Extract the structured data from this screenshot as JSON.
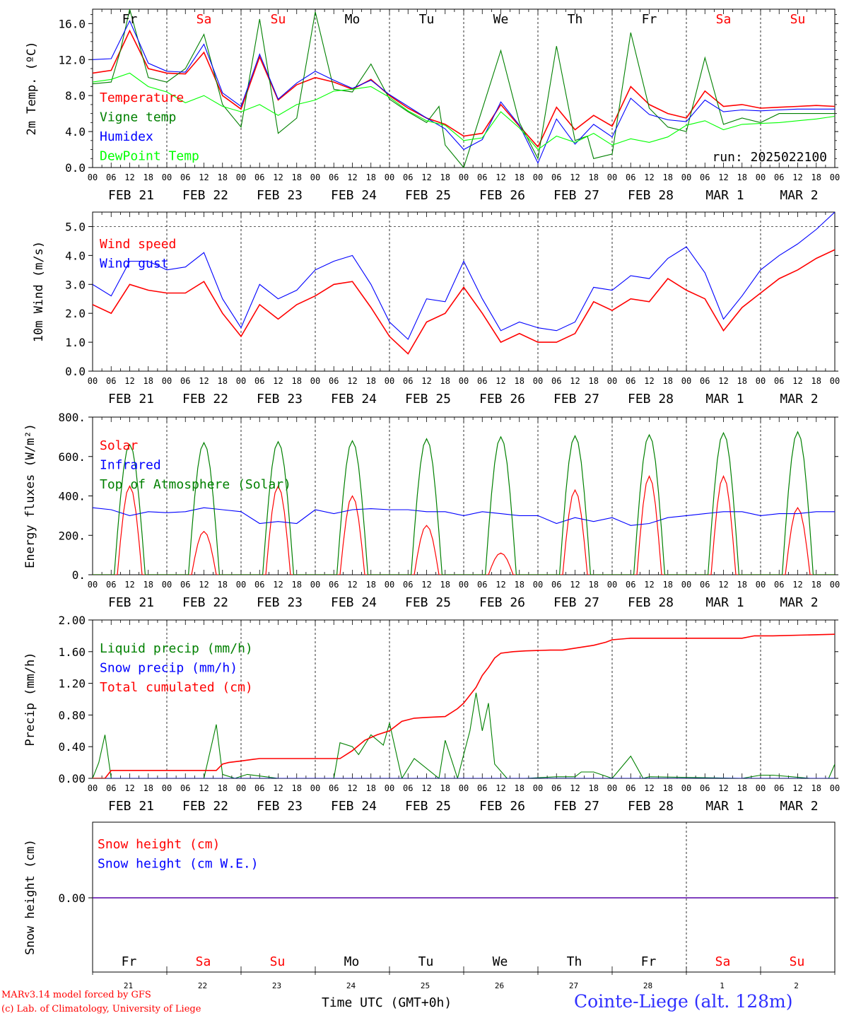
{
  "chart_data": [
    {
      "type": "line",
      "ylabel": "2m Temp. (ºC)",
      "ylim": [
        0,
        17.6
      ],
      "yticks": [
        0,
        4,
        8,
        12,
        16
      ],
      "ytick_labels": [
        "0.0",
        "4.0",
        "8.0",
        "12.0",
        "16.0"
      ],
      "day_names": [
        "Fr",
        "Sa",
        "Su",
        "Mo",
        "Tu",
        "We",
        "Th",
        "Fr",
        "Sa",
        "Su"
      ],
      "day_name_colors": [
        "#000000",
        "#ff0000",
        "#ff0000",
        "#000000",
        "#000000",
        "#000000",
        "#000000",
        "#000000",
        "#ff0000",
        "#ff0000"
      ],
      "annotation": "run: 2025022100",
      "series": [
        {
          "name": "Temperature",
          "color": "#ff0000",
          "x": [
            0,
            6,
            12,
            18,
            24,
            30,
            36,
            42,
            48,
            54,
            60,
            66,
            72,
            78,
            84,
            90,
            96,
            102,
            108,
            114,
            120,
            126,
            132,
            138,
            144,
            150,
            156,
            162,
            168,
            174,
            180,
            186,
            192,
            198,
            204,
            210,
            216,
            222,
            228,
            234,
            240
          ],
          "y": [
            10.5,
            10.8,
            15.2,
            11,
            10.5,
            10.4,
            12.8,
            8,
            6.5,
            12.3,
            7.5,
            9.2,
            10,
            9.5,
            8.7,
            9.8,
            8,
            6.6,
            5.5,
            4.8,
            3.5,
            3.8,
            7,
            4.6,
            2.3,
            6.7,
            4.2,
            5.8,
            4.6,
            9,
            7,
            6,
            5.5,
            8.5,
            6.8,
            7,
            6.6,
            6.7,
            6.8,
            6.9,
            6.8
          ]
        },
        {
          "name": "Vigne temp",
          "color": "#008000",
          "x": [
            0,
            6,
            9,
            12,
            18,
            24,
            30,
            36,
            42,
            48,
            54,
            60,
            66,
            72,
            78,
            84,
            90,
            96,
            102,
            108,
            112,
            114,
            120,
            126,
            132,
            138,
            144,
            150,
            156,
            160,
            162,
            168,
            174,
            180,
            186,
            192,
            198,
            204,
            210,
            216,
            222,
            228,
            234,
            240
          ],
          "y": [
            9.3,
            9.5,
            13,
            17.6,
            10,
            9.5,
            11,
            14.8,
            7,
            4.5,
            16.5,
            3.8,
            5.5,
            17.3,
            8.7,
            8.4,
            11.5,
            7.6,
            6.2,
            5,
            6.8,
            2.5,
            0,
            6.5,
            13,
            5,
            1,
            13.5,
            3,
            3.5,
            1,
            1.5,
            15,
            6.6,
            4.5,
            4,
            12.2,
            4.8,
            5.5,
            5,
            6,
            6,
            6,
            6
          ]
        },
        {
          "name": "Humidex",
          "color": "#0000ff",
          "x": [
            0,
            6,
            12,
            18,
            24,
            30,
            36,
            42,
            48,
            54,
            60,
            66,
            72,
            78,
            84,
            90,
            96,
            102,
            108,
            114,
            120,
            126,
            132,
            138,
            144,
            150,
            156,
            162,
            168,
            174,
            180,
            186,
            192,
            198,
            204,
            210,
            216,
            222,
            228,
            234,
            240
          ],
          "y": [
            12,
            12.1,
            16.3,
            11.6,
            10.7,
            10.6,
            13.7,
            8.3,
            6.8,
            12.6,
            7.6,
            9.4,
            10.7,
            9.7,
            8.8,
            9.7,
            8.1,
            6.8,
            5.5,
            4.3,
            2,
            3.1,
            7.3,
            4.7,
            0.5,
            5.4,
            2.6,
            4.8,
            3.4,
            7.7,
            5.9,
            5.3,
            5.1,
            7.5,
            6.2,
            6.4,
            6.3,
            6.4,
            6.5,
            6.5,
            6.5
          ]
        },
        {
          "name": "DewPoint Temp",
          "color": "#00ff00",
          "x": [
            0,
            6,
            12,
            18,
            24,
            30,
            36,
            42,
            48,
            54,
            60,
            66,
            72,
            78,
            84,
            90,
            96,
            102,
            108,
            114,
            120,
            126,
            132,
            138,
            144,
            150,
            156,
            162,
            168,
            174,
            180,
            186,
            192,
            198,
            204,
            210,
            216,
            222,
            228,
            234,
            240
          ],
          "y": [
            9.5,
            9.8,
            10.5,
            9,
            8.4,
            7.2,
            8,
            6.8,
            6.2,
            7,
            5.8,
            7,
            7.5,
            8.5,
            8.7,
            9,
            7.8,
            6.3,
            5.2,
            4.7,
            3,
            3.3,
            6.2,
            4.4,
            2,
            3.5,
            2.8,
            3.8,
            2.5,
            3.2,
            2.8,
            3.4,
            4.7,
            5.2,
            4.2,
            4.8,
            4.9,
            5,
            5.2,
            5.4,
            5.7
          ]
        }
      ],
      "x_day_labels": [
        "FEB 21",
        "FEB 22",
        "FEB 23",
        "FEB 24",
        "FEB 25",
        "FEB 26",
        "FEB 27",
        "FEB 28",
        "MAR  1",
        "MAR  2"
      ],
      "x_hour_labels": [
        "00",
        "06",
        "12",
        "18"
      ]
    },
    {
      "type": "line",
      "ylabel": "10m Wind (m/s)",
      "ylim": [
        0,
        5.5
      ],
      "yticks": [
        0,
        1,
        2,
        3,
        4,
        5
      ],
      "ytick_labels": [
        "0.0",
        "1.0",
        "2.0",
        "3.0",
        "4.0",
        "5.0"
      ],
      "series": [
        {
          "name": "Wind speed",
          "color": "#ff0000",
          "x": [
            0,
            6,
            12,
            18,
            24,
            30,
            36,
            42,
            48,
            54,
            60,
            66,
            72,
            78,
            84,
            90,
            96,
            102,
            108,
            114,
            120,
            126,
            132,
            138,
            144,
            150,
            156,
            162,
            168,
            174,
            180,
            186,
            192,
            198,
            204,
            210,
            216,
            222,
            228,
            234,
            240
          ],
          "y": [
            2.3,
            2,
            3,
            2.8,
            2.7,
            2.7,
            3.1,
            2,
            1.2,
            2.3,
            1.8,
            2.3,
            2.6,
            3,
            3.1,
            2.2,
            1.2,
            0.6,
            1.7,
            2,
            2.9,
            2,
            1,
            1.3,
            1,
            1,
            1.3,
            2.4,
            2.1,
            2.5,
            2.4,
            3.2,
            2.8,
            2.5,
            1.4,
            2.2,
            2.7,
            3.2,
            3.5,
            3.9,
            4.2
          ]
        },
        {
          "name": "Wind gust",
          "color": "#0000ff",
          "x": [
            0,
            6,
            12,
            18,
            24,
            30,
            36,
            42,
            48,
            54,
            60,
            66,
            72,
            78,
            84,
            90,
            96,
            102,
            108,
            114,
            120,
            126,
            132,
            138,
            144,
            150,
            156,
            162,
            168,
            174,
            180,
            186,
            192,
            198,
            204,
            210,
            216,
            222,
            228,
            234,
            240
          ],
          "y": [
            3,
            2.6,
            3.8,
            3.8,
            3.5,
            3.6,
            4.1,
            2.5,
            1.5,
            3,
            2.5,
            2.8,
            3.5,
            3.8,
            4,
            3,
            1.7,
            1.1,
            2.5,
            2.4,
            3.8,
            2.5,
            1.4,
            1.7,
            1.5,
            1.4,
            1.7,
            2.9,
            2.8,
            3.3,
            3.2,
            3.9,
            4.3,
            3.4,
            1.8,
            2.6,
            3.5,
            4,
            4.4,
            4.9,
            5.5
          ]
        }
      ]
    },
    {
      "type": "line",
      "ylabel": "Energy fluxes (W/m²)",
      "ylim": [
        0,
        800
      ],
      "yticks": [
        0,
        200,
        400,
        600,
        800
      ],
      "ytick_labels": [
        "0.",
        "200.",
        "400.",
        "600.",
        "800."
      ],
      "series": [
        {
          "name": "Solar",
          "color": "#ff0000",
          "daily_peaks": [
            450,
            220,
            450,
            400,
            250,
            110,
            430,
            500,
            500,
            340
          ]
        },
        {
          "name": "Infrared",
          "color": "#0000ff",
          "x": [
            0,
            6,
            12,
            18,
            24,
            30,
            36,
            42,
            48,
            54,
            60,
            66,
            72,
            78,
            84,
            90,
            96,
            102,
            108,
            114,
            120,
            126,
            132,
            138,
            144,
            150,
            156,
            162,
            168,
            174,
            180,
            186,
            192,
            198,
            204,
            210,
            216,
            222,
            228,
            234,
            240
          ],
          "y": [
            340,
            330,
            300,
            320,
            315,
            320,
            340,
            330,
            320,
            260,
            270,
            260,
            330,
            310,
            330,
            335,
            330,
            330,
            320,
            320,
            300,
            320,
            310,
            300,
            300,
            260,
            290,
            270,
            290,
            250,
            260,
            290,
            300,
            310,
            320,
            320,
            300,
            310,
            310,
            320,
            320
          ]
        },
        {
          "name": "Top of Atmosphere (Solar)",
          "color": "#008000",
          "daily_peaks": [
            660,
            670,
            675,
            680,
            690,
            700,
            705,
            710,
            720,
            725
          ]
        }
      ]
    },
    {
      "type": "line",
      "ylabel": "Precip (mm/h)",
      "ylim": [
        0,
        2.0
      ],
      "yticks": [
        0,
        0.4,
        0.8,
        1.2,
        1.6,
        2.0
      ],
      "ytick_labels": [
        "0.00",
        "0.40",
        "0.80",
        "1.20",
        "1.60",
        "2.00"
      ],
      "series": [
        {
          "name": "Liquid precip (mm/h)",
          "color": "#008000",
          "x": [
            0,
            2,
            4,
            6,
            10,
            30,
            36,
            40,
            42,
            46,
            50,
            60,
            78,
            80,
            84,
            86,
            90,
            94,
            96,
            100,
            104,
            112,
            114,
            118,
            120,
            122,
            124,
            126,
            128,
            130,
            134,
            140,
            150,
            156,
            158,
            162,
            168,
            174,
            178,
            180,
            210,
            216,
            220,
            232,
            238,
            240
          ],
          "y": [
            0,
            0.2,
            0.55,
            0,
            0,
            0,
            0,
            0.68,
            0.05,
            0,
            0.05,
            0,
            0,
            0.45,
            0.4,
            0.3,
            0.55,
            0.42,
            0.7,
            0,
            0.25,
            0,
            0.48,
            0,
            0.3,
            0.6,
            1.08,
            0.6,
            0.95,
            0.18,
            0,
            0,
            0.02,
            0.02,
            0.08,
            0.08,
            0,
            0.28,
            0,
            0.02,
            0,
            0.04,
            0.04,
            0,
            0,
            0.18
          ]
        },
        {
          "name": "Snow precip (mm/h)",
          "color": "#0000ff",
          "x": [
            0,
            240
          ],
          "y": [
            0,
            0
          ]
        },
        {
          "name": "Total cumulated (cm)",
          "color": "#ff0000",
          "x": [
            0,
            4,
            6,
            10,
            40,
            42,
            44,
            48,
            52,
            54,
            60,
            80,
            84,
            88,
            92,
            96,
            100,
            104,
            108,
            114,
            118,
            120,
            124,
            126,
            128,
            130,
            132,
            136,
            140,
            148,
            152,
            162,
            166,
            168,
            174,
            180,
            190,
            210,
            214,
            220,
            240
          ],
          "y": [
            0,
            0,
            0.1,
            0.1,
            0.1,
            0.18,
            0.2,
            0.22,
            0.24,
            0.25,
            0.25,
            0.25,
            0.35,
            0.48,
            0.55,
            0.6,
            0.72,
            0.76,
            0.77,
            0.78,
            0.88,
            0.95,
            1.15,
            1.3,
            1.4,
            1.52,
            1.58,
            1.6,
            1.61,
            1.62,
            1.62,
            1.68,
            1.72,
            1.75,
            1.77,
            1.77,
            1.77,
            1.77,
            1.8,
            1.8,
            1.82
          ]
        }
      ]
    },
    {
      "type": "line",
      "ylabel": "Snow height (cm)",
      "yticks": [
        0
      ],
      "ytick_labels": [
        "0.00"
      ],
      "series": [
        {
          "name": "Snow height (cm)",
          "color": "#ff0000",
          "x": [
            0,
            240
          ],
          "y": [
            0,
            0
          ]
        },
        {
          "name": "Snow height (cm W.E.)",
          "color": "#0000ff",
          "x": [
            0,
            240
          ],
          "y": [
            0,
            0
          ]
        }
      ],
      "day_names": [
        "Fr",
        "Sa",
        "Su",
        "Mo",
        "Tu",
        "We",
        "Th",
        "Fr",
        "Sa",
        "Su"
      ],
      "day_name_colors": [
        "#000000",
        "#ff0000",
        "#ff0000",
        "#000000",
        "#000000",
        "#000000",
        "#000000",
        "#000000",
        "#ff0000",
        "#ff0000"
      ],
      "day_numbers": [
        "21",
        "22",
        "23",
        "24",
        "25",
        "26",
        "27",
        "28",
        "1",
        "2"
      ],
      "xlabel": "Time UTC (GMT+0h)"
    }
  ],
  "footer": {
    "model_line": "MARv3.14 model forced by GFS",
    "credit_line": "(c) Lab. of Climatology, University of Liege",
    "station": "Cointe-Liege (alt. 128m)"
  }
}
